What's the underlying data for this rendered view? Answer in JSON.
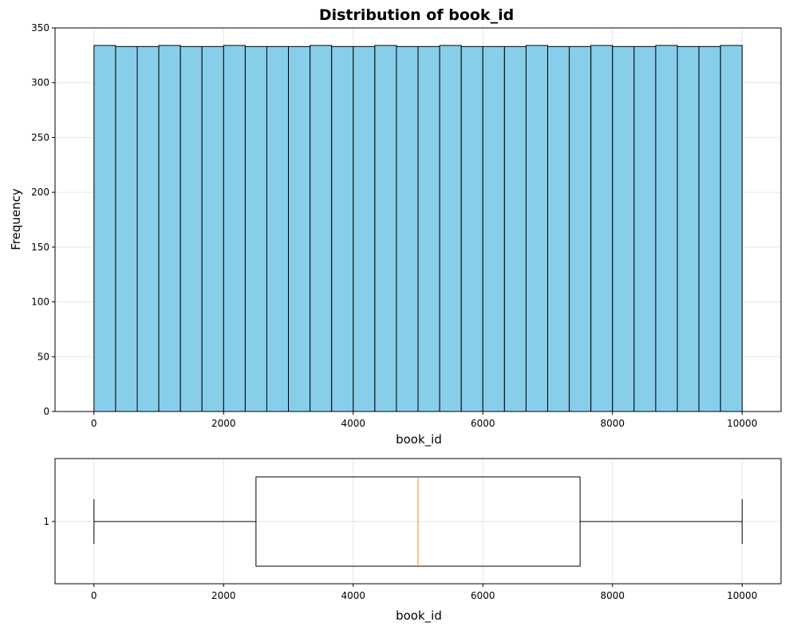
{
  "chart_data": [
    {
      "type": "bar",
      "chart_kind": "histogram",
      "title": "Distribution of book_id",
      "xlabel": "book_id",
      "ylabel": "Frequency",
      "xlim": [
        -600,
        10600
      ],
      "ylim": [
        0,
        350
      ],
      "xticks": [
        0,
        2000,
        4000,
        6000,
        8000,
        10000
      ],
      "yticks": [
        0,
        50,
        100,
        150,
        200,
        250,
        300,
        350
      ],
      "grid": true,
      "bin_range": [
        1,
        10000
      ],
      "bar_color": "#87ceeb",
      "edge_color": "#000000",
      "values": [
        334,
        333,
        333,
        334,
        333,
        333,
        334,
        333,
        333,
        333,
        334,
        333,
        333,
        334,
        333,
        333,
        334,
        333,
        333,
        333,
        334,
        333,
        333,
        334,
        333,
        333,
        334,
        333,
        333,
        334
      ]
    },
    {
      "type": "box",
      "xlabel": "book_id",
      "xlim": [
        -600,
        10600
      ],
      "xticks": [
        0,
        2000,
        4000,
        6000,
        8000,
        10000
      ],
      "ytick_labels": [
        "1"
      ],
      "grid": true,
      "min": 1,
      "q1": 2500,
      "median": 5000,
      "q3": 7500,
      "max": 10000,
      "median_color": "#ff7f0e"
    }
  ]
}
